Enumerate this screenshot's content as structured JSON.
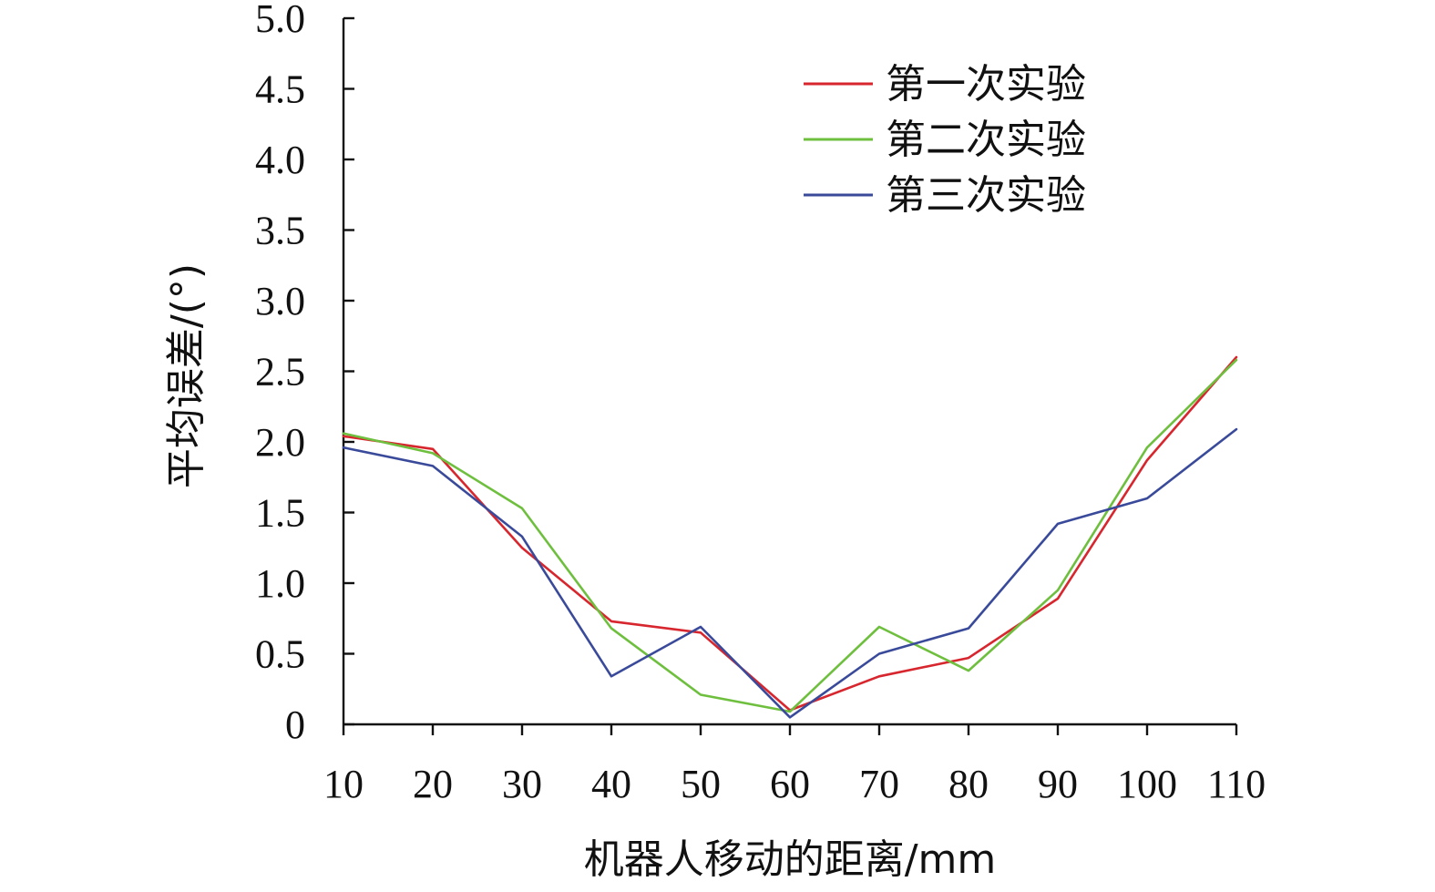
{
  "chart_data": {
    "type": "line",
    "title": "",
    "xlabel": "机器人移动的距离/mm",
    "ylabel": "平均误差/(°)",
    "x": [
      10,
      20,
      30,
      40,
      50,
      60,
      70,
      80,
      90,
      100,
      110
    ],
    "x_tick_labels": [
      "10",
      "20",
      "30",
      "40",
      "50",
      "60",
      "70",
      "80",
      "90",
      "100",
      "110"
    ],
    "xlim": [
      10,
      110
    ],
    "ylim": [
      0,
      5.0
    ],
    "y_tick_labels": [
      "0",
      "0.5",
      "1.0",
      "1.5",
      "2.0",
      "2.5",
      "3.0",
      "3.5",
      "4.0",
      "4.5",
      "5.0"
    ],
    "y_tick_values": [
      0,
      0.5,
      1.0,
      1.5,
      2.0,
      2.5,
      3.0,
      3.5,
      4.0,
      4.5,
      5.0
    ],
    "grid": false,
    "legend_position": "top-right",
    "series": [
      {
        "name": "第一次实验",
        "color": "#d7262e",
        "values": [
          2.04,
          1.95,
          1.25,
          0.73,
          0.65,
          0.1,
          0.34,
          0.47,
          0.89,
          1.87,
          2.6
        ]
      },
      {
        "name": "第二次实验",
        "color": "#6fbf3f",
        "values": [
          2.06,
          1.92,
          1.53,
          0.68,
          0.21,
          0.09,
          0.69,
          0.38,
          0.95,
          1.96,
          2.58
        ]
      },
      {
        "name": "第三次实验",
        "color": "#3a4a9a",
        "values": [
          1.96,
          1.83,
          1.33,
          0.34,
          0.69,
          0.05,
          0.5,
          0.68,
          1.42,
          1.6,
          2.09
        ]
      }
    ]
  }
}
